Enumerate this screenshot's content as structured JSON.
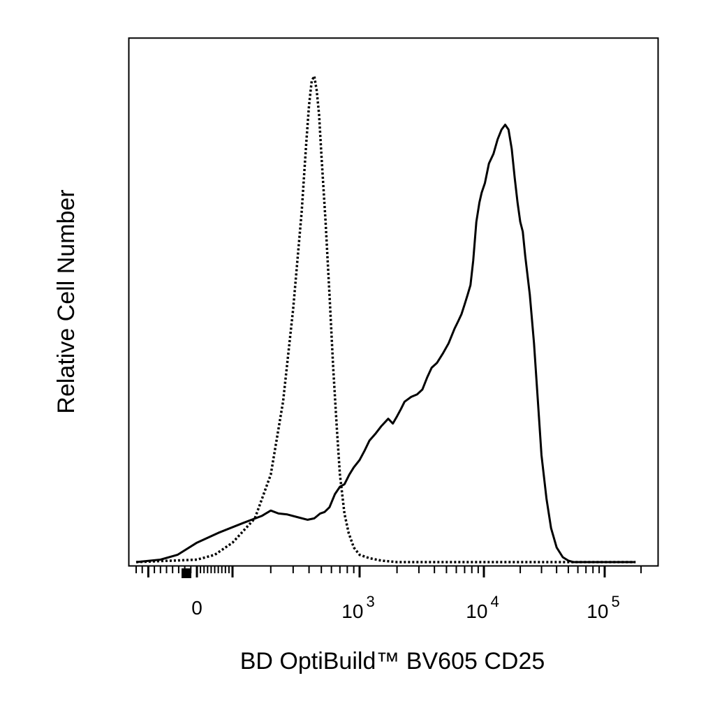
{
  "chart_data": {
    "type": "line",
    "title": "",
    "xlabel": "BD OptiBuild™ BV605 CD25",
    "ylabel": "Relative Cell Number",
    "x_scale": "biexponential",
    "x_tick_labels": [
      {
        "value": 0,
        "base": "0",
        "exp": ""
      },
      {
        "value": 1000,
        "base": "10",
        "exp": "3"
      },
      {
        "value": 10000,
        "base": "10",
        "exp": "4"
      },
      {
        "value": 100000,
        "base": "10",
        "exp": "5"
      }
    ],
    "legend": "none",
    "grid": false,
    "series": [
      {
        "style": "dotted",
        "color": "#000000",
        "points": [
          [
            -250,
            0
          ],
          [
            0,
            0.5
          ],
          [
            50,
            1.5
          ],
          [
            100,
            4
          ],
          [
            150,
            9
          ],
          [
            200,
            18
          ],
          [
            250,
            33
          ],
          [
            300,
            52
          ],
          [
            350,
            72
          ],
          [
            380,
            86
          ],
          [
            400,
            94
          ],
          [
            420,
            99
          ],
          [
            440,
            100
          ],
          [
            460,
            97
          ],
          [
            480,
            92
          ],
          [
            500,
            84
          ],
          [
            540,
            70
          ],
          [
            580,
            55
          ],
          [
            620,
            40
          ],
          [
            660,
            28
          ],
          [
            700,
            18
          ],
          [
            760,
            10
          ],
          [
            820,
            6
          ],
          [
            900,
            3
          ],
          [
            1000,
            1.5
          ],
          [
            1200,
            0.8
          ],
          [
            1500,
            0.3
          ],
          [
            2000,
            0
          ],
          [
            100000,
            0
          ],
          [
            180000,
            0
          ]
        ]
      },
      {
        "style": "solid",
        "color": "#000000",
        "points": [
          [
            -250,
            0
          ],
          [
            -150,
            0.5
          ],
          [
            -80,
            1.5
          ],
          [
            0,
            4
          ],
          [
            60,
            6
          ],
          [
            120,
            8
          ],
          [
            170,
            9.5
          ],
          [
            200,
            10.6
          ],
          [
            230,
            10
          ],
          [
            270,
            9.8
          ],
          [
            330,
            9.2
          ],
          [
            390,
            8.7
          ],
          [
            440,
            9
          ],
          [
            490,
            10
          ],
          [
            530,
            10.3
          ],
          [
            580,
            11.3
          ],
          [
            640,
            14
          ],
          [
            700,
            15.5
          ],
          [
            760,
            16
          ],
          [
            830,
            18
          ],
          [
            900,
            19.5
          ],
          [
            1000,
            21
          ],
          [
            1100,
            23
          ],
          [
            1200,
            25
          ],
          [
            1350,
            26.5
          ],
          [
            1500,
            28
          ],
          [
            1700,
            29.5
          ],
          [
            1850,
            28.5
          ],
          [
            2000,
            30
          ],
          [
            2150,
            31.5
          ],
          [
            2300,
            33
          ],
          [
            2600,
            34
          ],
          [
            2900,
            34.5
          ],
          [
            3200,
            35.5
          ],
          [
            3500,
            38
          ],
          [
            3800,
            40
          ],
          [
            4200,
            41
          ],
          [
            4700,
            43
          ],
          [
            5200,
            45
          ],
          [
            5800,
            48
          ],
          [
            6200,
            49.5
          ],
          [
            6600,
            51
          ],
          [
            7000,
            53
          ],
          [
            7400,
            55
          ],
          [
            7800,
            57
          ],
          [
            8200,
            62
          ],
          [
            8700,
            70
          ],
          [
            9200,
            74
          ],
          [
            9600,
            76
          ],
          [
            10200,
            78
          ],
          [
            11000,
            82
          ],
          [
            12000,
            84
          ],
          [
            13000,
            87
          ],
          [
            14000,
            89
          ],
          [
            15000,
            90
          ],
          [
            16000,
            89
          ],
          [
            17000,
            85
          ],
          [
            18000,
            79
          ],
          [
            19000,
            74
          ],
          [
            20000,
            70
          ],
          [
            21000,
            68
          ],
          [
            22000,
            63
          ],
          [
            24000,
            55
          ],
          [
            26000,
            45
          ],
          [
            28000,
            33
          ],
          [
            30000,
            22
          ],
          [
            33000,
            13
          ],
          [
            36000,
            7
          ],
          [
            40000,
            3
          ],
          [
            45000,
            1
          ],
          [
            50000,
            0.3
          ],
          [
            55000,
            0
          ],
          [
            100000,
            0
          ],
          [
            180000,
            0
          ]
        ]
      }
    ]
  }
}
